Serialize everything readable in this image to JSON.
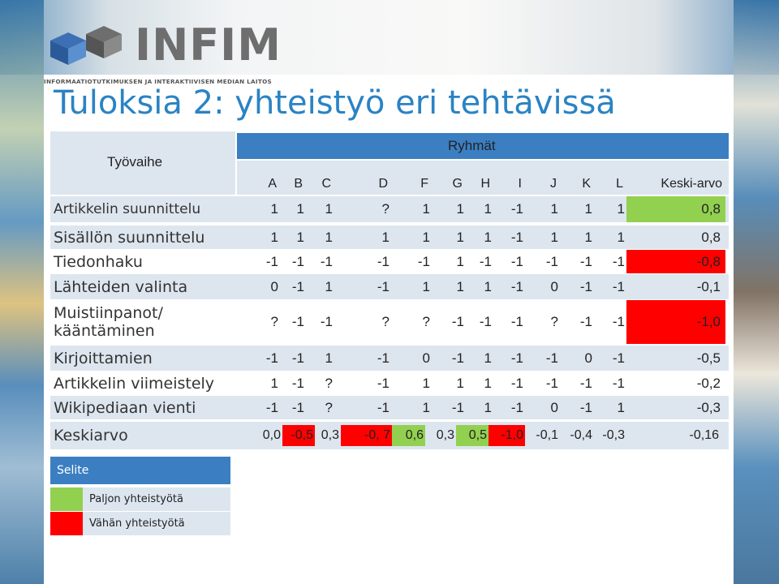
{
  "logo": {
    "name": "INFIM",
    "subtitle": "INFORMAATIOTUTKIMUKSEN JA INTERAKTIIVISEN MEDIAN LAITOS"
  },
  "title": "Tuloksia 2: yhteistyö eri tehtävissä",
  "table": {
    "phase_header": "Työvaihe",
    "groups_header": "Ryhmät",
    "columns": [
      "A",
      "B",
      "C",
      "D",
      "F",
      "G",
      "H",
      "I",
      "J",
      "K",
      "L",
      "Keski-arvo"
    ],
    "rows": [
      {
        "label": "Artikkelin suunnittelu",
        "values": [
          "1",
          "1",
          "1",
          "?",
          "1",
          "1",
          "1",
          "-1",
          "1",
          "1",
          "1",
          "0,8"
        ],
        "avg_color": "green"
      },
      {
        "label": "Sisällön suunnittelu",
        "values": [
          "1",
          "1",
          "1",
          "1",
          "1",
          "1",
          "1",
          "-1",
          "1",
          "1",
          "1",
          "0,8"
        ],
        "avg_color": "none"
      },
      {
        "label": "Tiedonhaku",
        "values": [
          "-1",
          "-1",
          "-1",
          "-1",
          "-1",
          "1",
          "-1",
          "-1",
          "-1",
          "-1",
          "-1",
          "-0,8"
        ],
        "avg_color": "red"
      },
      {
        "label": "Lähteiden valinta",
        "values": [
          "0",
          "-1",
          "1",
          "-1",
          "1",
          "1",
          "1",
          "-1",
          "0",
          "-1",
          "-1",
          "-0,1"
        ],
        "avg_color": "none"
      },
      {
        "label": "Muistiinpanot/ kääntäminen",
        "label_line1": "Muistiinpanot/",
        "label_line2": "kääntäminen",
        "values": [
          "?",
          "-1",
          "-1",
          "?",
          "?",
          "-1",
          "-1",
          "-1",
          "?",
          "-1",
          "-1",
          "-1,0"
        ],
        "avg_color": "red"
      },
      {
        "label": "Kirjoittamien",
        "values": [
          "-1",
          "-1",
          "1",
          "-1",
          "0",
          "-1",
          "1",
          "-1",
          "-1",
          "0",
          "-1",
          "-0,5"
        ],
        "avg_color": "none"
      },
      {
        "label": "Artikkelin viimeistely",
        "values": [
          "1",
          "-1",
          "?",
          "-1",
          "1",
          "1",
          "1",
          "-1",
          "-1",
          "-1",
          "-1",
          "-0,2"
        ],
        "avg_color": "none"
      },
      {
        "label": "Wikipediaan vienti",
        "values": [
          "-1",
          "-1",
          "?",
          "-1",
          "1",
          "-1",
          "1",
          "-1",
          "0",
          "-1",
          "1",
          "-0,3"
        ],
        "avg_color": "none"
      }
    ],
    "summary": {
      "label": "Keskiarvo",
      "values": [
        "0,0",
        "-0,5",
        "0,3",
        "-0, 7",
        "0,6",
        "0,3",
        "0,5",
        "-1,0",
        "-0,1",
        "-0,4",
        "-0,3",
        "-0,16"
      ],
      "colors": [
        "none",
        "red",
        "none",
        "red",
        "green",
        "none",
        "green",
        "red",
        "none",
        "none",
        "none",
        "none"
      ]
    }
  },
  "legend": {
    "title": "Selite",
    "items": [
      {
        "label": "Paljon yhteistyötä",
        "color": "#92d050"
      },
      {
        "label": "Vähän yhteistyötä",
        "color": "#ff0000"
      }
    ]
  },
  "colors": {
    "title": "#2a83c4",
    "header_blue": "#3b7fc2",
    "band": "#dde6ef",
    "green": "#92d050",
    "red": "#ff0000"
  }
}
